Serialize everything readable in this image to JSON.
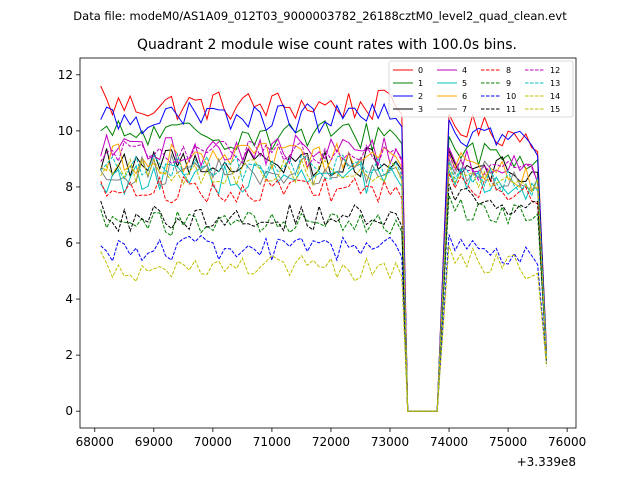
{
  "header": {
    "data_file": "Data file: modeM0/AS1A09_012T03_9000003782_26188cztM0_level2_quad_clean.evt"
  },
  "chart_data": {
    "type": "line",
    "title": "Quadrant 2 module wise count rates with 100.0s bins.",
    "xlabel": "",
    "ylabel": "",
    "x_offset_label": "+3.339e8",
    "xlim": [
      67750,
      76150
    ],
    "ylim": [
      -0.6,
      12.6
    ],
    "x_ticks": [
      68000,
      69000,
      70000,
      71000,
      72000,
      73000,
      74000,
      75000,
      76000
    ],
    "x_tick_labels": [
      "68000",
      "69000",
      "70000",
      "71000",
      "72000",
      "73000",
      "74000",
      "75000",
      "76000"
    ],
    "y_ticks": [
      0,
      2,
      4,
      6,
      8,
      10,
      12
    ],
    "y_tick_labels": [
      "0",
      "2",
      "4",
      "6",
      "8",
      "10",
      "12"
    ],
    "x_start": 68100,
    "bin": 100,
    "n_before_gap": 51,
    "gap_end": 73800,
    "x_end": 75650,
    "legend": {
      "placement": "top-right",
      "ncol": 4
    },
    "series": [
      {
        "name": "0",
        "color": "#ff0000",
        "dash": "solid",
        "base": 10.9,
        "ampl": 0.35,
        "start": 11.6,
        "post": 10.2,
        "last": 2.2
      },
      {
        "name": "1",
        "color": "#008000",
        "dash": "solid",
        "base": 9.85,
        "ampl": 0.35,
        "start": 10.0,
        "post": 9.4,
        "last": 2.0
      },
      {
        "name": "2",
        "color": "#0000ff",
        "dash": "solid",
        "base": 10.45,
        "ampl": 0.35,
        "start": 10.4,
        "post": 10.0,
        "last": 2.1
      },
      {
        "name": "3",
        "color": "#000000",
        "dash": "solid",
        "base": 8.9,
        "ampl": 0.35,
        "start": 8.6,
        "post": 8.9,
        "last": 2.0
      },
      {
        "name": "4",
        "color": "#bf00bf",
        "dash": "solid",
        "base": 9.3,
        "ampl": 0.35,
        "start": 9.1,
        "post": 9.0,
        "last": 2.0
      },
      {
        "name": "5",
        "color": "#00bfbf",
        "dash": "solid",
        "base": 8.3,
        "ampl": 0.35,
        "start": 8.1,
        "post": 8.2,
        "last": 1.9
      },
      {
        "name": "6",
        "color": "#ffa500",
        "dash": "solid",
        "base": 9.0,
        "ampl": 0.35,
        "start": 8.7,
        "post": 8.8,
        "last": 1.9
      },
      {
        "name": "7",
        "color": "#808080",
        "dash": "solid",
        "base": 8.6,
        "ampl": 0.35,
        "start": 8.6,
        "post": 8.6,
        "last": 1.9
      },
      {
        "name": "8",
        "color": "#ff0000",
        "dash": "dashed",
        "base": 7.9,
        "ampl": 0.3,
        "start": 8.2,
        "post": 8.1,
        "last": 1.8
      },
      {
        "name": "9",
        "color": "#008000",
        "dash": "dashed",
        "base": 6.7,
        "ampl": 0.3,
        "start": 7.2,
        "post": 7.3,
        "last": 1.8
      },
      {
        "name": "10",
        "color": "#0000ff",
        "dash": "dashed",
        "base": 5.8,
        "ampl": 0.3,
        "start": 5.9,
        "post": 5.9,
        "last": 1.7
      },
      {
        "name": "11",
        "color": "#000000",
        "dash": "dashed",
        "base": 6.9,
        "ampl": 0.3,
        "start": 7.5,
        "post": 7.7,
        "last": 1.8
      },
      {
        "name": "12",
        "color": "#bf00bf",
        "dash": "dashed",
        "base": 9.2,
        "ampl": 0.3,
        "start": 8.9,
        "post": 8.8,
        "last": 1.9
      },
      {
        "name": "13",
        "color": "#00bfbf",
        "dash": "dashed",
        "base": 8.7,
        "ampl": 0.3,
        "start": 8.6,
        "post": 8.5,
        "last": 1.9
      },
      {
        "name": "14",
        "color": "#bfbf00",
        "dash": "dashed",
        "base": 5.1,
        "ampl": 0.3,
        "start": 5.7,
        "post": 5.5,
        "last": 1.6
      },
      {
        "name": "15",
        "color": "#bfbf00",
        "dash": "dashed",
        "base": 8.5,
        "ampl": 0.3,
        "start": 8.4,
        "post": 8.4,
        "last": 1.8
      }
    ]
  }
}
